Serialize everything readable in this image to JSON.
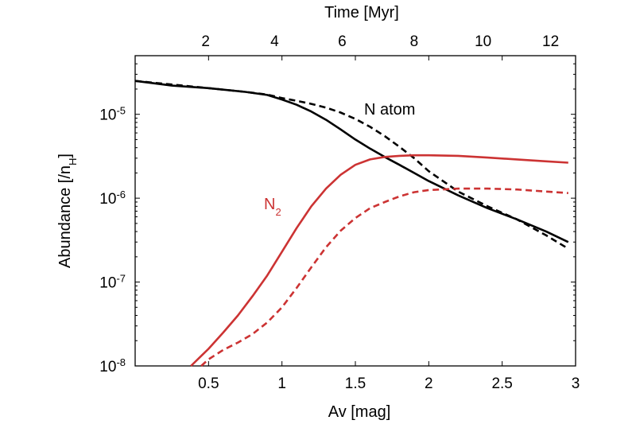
{
  "chart_data": {
    "type": "line",
    "title": "",
    "xlabel": "Av [mag]",
    "ylabel": "Abundance [/n",
    "ylabel_sub": "H",
    "ylabel_close": "]",
    "top_axis_label": "Time [Myr]",
    "xlim": [
      0,
      3
    ],
    "ylim": [
      1e-08,
      5e-05
    ],
    "yscale": "log",
    "grid": false,
    "x_ticks": [
      0.5,
      1,
      1.5,
      2,
      2.5,
      3
    ],
    "x_tick_labels": [
      "0.5",
      "1",
      "1.5",
      "2",
      "2.5",
      "3"
    ],
    "y_ticks": [
      1e-08,
      1e-07,
      1e-06,
      1e-05
    ],
    "y_tick_base": "10",
    "y_tick_exps": [
      "-8",
      "-7",
      "-6",
      "-5"
    ],
    "top_ticks": [
      {
        "label": "2",
        "av": 0.48
      },
      {
        "label": "4",
        "av": 0.95
      },
      {
        "label": "6",
        "av": 1.41
      },
      {
        "label": "8",
        "av": 1.9
      },
      {
        "label": "10",
        "av": 2.37
      },
      {
        "label": "12",
        "av": 2.83
      }
    ],
    "annotations": [
      {
        "text": "N atom",
        "color": "#000000"
      },
      {
        "text": "N",
        "sub": "2",
        "color": "#cc3333"
      }
    ],
    "colors": {
      "n_atom": "#000000",
      "n2": "#cc3333"
    },
    "series": [
      {
        "species": "N atom",
        "style": "solid",
        "color": "#000000",
        "x": [
          0,
          0.25,
          0.5,
          0.75,
          0.9,
          1.0,
          1.1,
          1.2,
          1.3,
          1.4,
          1.5,
          1.6,
          1.7,
          1.8,
          1.9,
          2.0,
          2.2,
          2.4,
          2.6,
          2.8,
          2.95
        ],
        "y": [
          2.5e-05,
          2.2e-05,
          2.05e-05,
          1.85e-05,
          1.7e-05,
          1.5e-05,
          1.3e-05,
          1.08e-05,
          8.6e-06,
          6.6e-06,
          5e-06,
          3.9e-06,
          3.1e-06,
          2.5e-06,
          2e-06,
          1.6e-06,
          1.08e-06,
          7.6e-07,
          5.6e-07,
          4e-07,
          3e-07
        ]
      },
      {
        "species": "N atom",
        "style": "dashed",
        "color": "#000000",
        "x": [
          0,
          0.5,
          0.75,
          0.9,
          1.0,
          1.1,
          1.2,
          1.3,
          1.4,
          1.5,
          1.6,
          1.7,
          1.8,
          1.9,
          2.0,
          2.2,
          2.4,
          2.6,
          2.8,
          2.95
        ],
        "y": [
          2.5e-05,
          2.05e-05,
          1.85e-05,
          1.72e-05,
          1.56e-05,
          1.45e-05,
          1.33e-05,
          1.2e-05,
          1.05e-05,
          8.8e-06,
          7.1e-06,
          5.5e-06,
          4.1e-06,
          3e-06,
          2.1e-06,
          1.2e-06,
          8e-07,
          5.6e-07,
          3.6e-07,
          2.5e-07
        ]
      },
      {
        "species": "N2",
        "style": "solid",
        "color": "#cc3333",
        "x": [
          0.38,
          0.5,
          0.6,
          0.7,
          0.8,
          0.9,
          1.0,
          1.1,
          1.2,
          1.3,
          1.4,
          1.5,
          1.6,
          1.7,
          1.8,
          1.9,
          2.0,
          2.2,
          2.4,
          2.6,
          2.8,
          2.95
        ],
        "y": [
          1e-08,
          1.6e-08,
          2.5e-08,
          4e-08,
          6.8e-08,
          1.2e-07,
          2.3e-07,
          4.4e-07,
          8e-07,
          1.3e-06,
          1.9e-06,
          2.5e-06,
          2.9e-06,
          3.1e-06,
          3.2e-06,
          3.25e-06,
          3.25e-06,
          3.2e-06,
          3.05e-06,
          2.9e-06,
          2.75e-06,
          2.65e-06
        ]
      },
      {
        "species": "N2",
        "style": "dashed",
        "color": "#cc3333",
        "x": [
          0.45,
          0.5,
          0.6,
          0.7,
          0.8,
          0.9,
          1.0,
          1.1,
          1.2,
          1.3,
          1.4,
          1.5,
          1.6,
          1.7,
          1.8,
          1.9,
          2.0,
          2.2,
          2.4,
          2.6,
          2.8,
          2.95
        ],
        "y": [
          1e-08,
          1.2e-08,
          1.55e-08,
          1.9e-08,
          2.4e-08,
          3.3e-08,
          5e-08,
          8.5e-08,
          1.5e-07,
          2.6e-07,
          4.1e-07,
          5.8e-07,
          7.6e-07,
          9e-07,
          1.05e-06,
          1.18e-06,
          1.25e-06,
          1.3e-06,
          1.3e-06,
          1.27e-06,
          1.2e-06,
          1.15e-06
        ]
      }
    ]
  }
}
